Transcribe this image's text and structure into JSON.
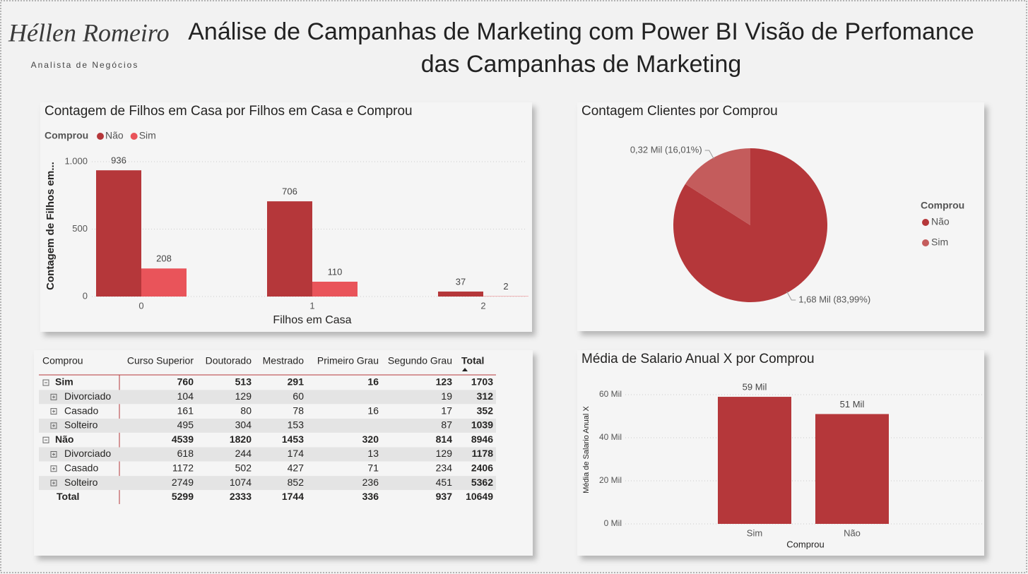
{
  "header": {
    "logo_name": "Héllen Romeiro",
    "logo_subtitle": "Analista de Negócios",
    "title": "Análise de Campanhas de Marketing com Power BI Visão de Perfomance das Campanhas de Marketing"
  },
  "chart_data": [
    {
      "type": "bar",
      "title": "Contagem de Filhos em Casa por Filhos em Casa e Comprou",
      "legend_title": "Comprou",
      "y_label": "Contagem de Filhos em...",
      "x_label": "Filhos em Casa",
      "categories": [
        "0",
        "1",
        "2"
      ],
      "series": [
        {
          "name": "Não",
          "color": "#b5373a",
          "values": [
            936,
            706,
            37
          ]
        },
        {
          "name": "Sim",
          "color": "#e9545a",
          "values": [
            208,
            110,
            2
          ]
        }
      ],
      "ylim": [
        0,
        1070
      ],
      "yticks": [
        0,
        500,
        {
          "value": 1000,
          "label": "1.000"
        }
      ],
      "grid": true
    },
    {
      "type": "pie",
      "title": "Contagem Clientes por Comprou",
      "legend_title": "Comprou",
      "categories": [
        "Não",
        "Sim"
      ],
      "values": [
        1680,
        320
      ],
      "value_labels": [
        "1,68 Mil (83,99%)",
        "0,32 Mil (16,01%)"
      ],
      "colors": [
        "#b5373a",
        "#c45c5c"
      ]
    },
    {
      "type": "bar",
      "title": "Média de Salario Anual X por Comprou",
      "y_label": "Média de Salario Anual X",
      "x_label": "Comprou",
      "categories": [
        "Sim",
        "Não"
      ],
      "values": [
        59000,
        51000
      ],
      "value_labels": [
        "59 Mil",
        "51 Mil"
      ],
      "color": "#b5373a",
      "ylim": [
        0,
        64000
      ],
      "yticks": [
        {
          "value": 0,
          "label": "0 Mil"
        },
        {
          "value": 20000,
          "label": "20 Mil"
        },
        {
          "value": 40000,
          "label": "40 Mil"
        },
        {
          "value": 60000,
          "label": "60 Mil"
        }
      ],
      "grid": true
    }
  ],
  "table": {
    "columns": [
      "Comprou",
      "Curso Superior",
      "Doutorado",
      "Mestrado",
      "Primeiro Grau",
      "Segundo Grau",
      "Total"
    ],
    "groups": [
      {
        "label": "Sim",
        "values": [
          760,
          513,
          291,
          16,
          123,
          1703
        ],
        "children": [
          {
            "label": "Divorciado",
            "values": [
              104,
              129,
              60,
              null,
              19,
              312
            ]
          },
          {
            "label": "Casado",
            "values": [
              161,
              80,
              78,
              16,
              17,
              352
            ]
          },
          {
            "label": "Solteiro",
            "values": [
              495,
              304,
              153,
              null,
              87,
              1039
            ]
          }
        ]
      },
      {
        "label": "Não",
        "values": [
          4539,
          1820,
          1453,
          320,
          814,
          8946
        ],
        "children": [
          {
            "label": "Divorciado",
            "values": [
              618,
              244,
              174,
              13,
              129,
              1178
            ]
          },
          {
            "label": "Casado",
            "values": [
              1172,
              502,
              427,
              71,
              234,
              2406
            ]
          },
          {
            "label": "Solteiro",
            "values": [
              2749,
              1074,
              852,
              236,
              451,
              5362
            ]
          }
        ]
      }
    ],
    "total": {
      "label": "Total",
      "values": [
        5299,
        2333,
        1744,
        336,
        937,
        10649
      ]
    }
  }
}
